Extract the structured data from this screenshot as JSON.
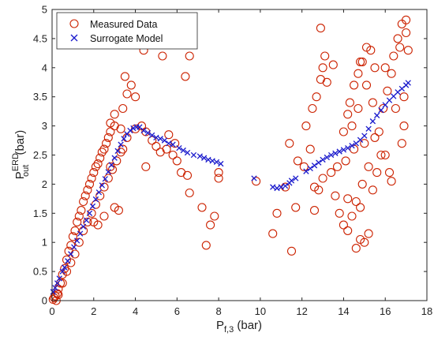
{
  "chart_data": {
    "type": "scatter",
    "title": "",
    "xlabel": {
      "main": "P",
      "sub": "f,3",
      "unit": " (bar)"
    },
    "ylabel": {
      "main": "P",
      "sup": "ERD",
      "sub": "out",
      "unit": " (bar)"
    },
    "xlim": [
      0,
      18
    ],
    "ylim": [
      0,
      5
    ],
    "xticks": [
      "0",
      "2",
      "4",
      "6",
      "8",
      "10",
      "12",
      "14",
      "16",
      "18"
    ],
    "yticks": [
      "0",
      "0.5",
      "1",
      "1.5",
      "2",
      "2.5",
      "3",
      "3.5",
      "4",
      "4.5",
      "5"
    ],
    "legend_position": "top-left",
    "colors": {
      "measured": "#cc2200",
      "measured_fill": "#ff0000",
      "model": "#1a1acc"
    },
    "series": [
      {
        "name": "Measured Data",
        "marker": "circle",
        "points": [
          [
            0.05,
            0.02
          ],
          [
            0.1,
            0.05
          ],
          [
            0.15,
            0.08
          ],
          [
            0.2,
            0.0
          ],
          [
            0.25,
            0.12
          ],
          [
            0.3,
            0.2
          ],
          [
            0.4,
            0.3
          ],
          [
            0.5,
            0.45
          ],
          [
            0.6,
            0.55
          ],
          [
            0.7,
            0.7
          ],
          [
            0.8,
            0.85
          ],
          [
            0.9,
            0.95
          ],
          [
            1.0,
            1.1
          ],
          [
            1.1,
            1.2
          ],
          [
            1.2,
            1.35
          ],
          [
            1.3,
            1.45
          ],
          [
            1.4,
            1.55
          ],
          [
            1.5,
            1.7
          ],
          [
            1.6,
            1.8
          ],
          [
            1.7,
            1.9
          ],
          [
            1.8,
            2.0
          ],
          [
            1.9,
            2.1
          ],
          [
            2.0,
            2.2
          ],
          [
            2.1,
            2.3
          ],
          [
            2.2,
            2.35
          ],
          [
            2.3,
            2.45
          ],
          [
            2.4,
            2.55
          ],
          [
            2.5,
            2.6
          ],
          [
            2.6,
            2.7
          ],
          [
            2.7,
            2.8
          ],
          [
            2.8,
            2.9
          ],
          [
            3.0,
            3.0
          ],
          [
            0.3,
            0.1
          ],
          [
            0.5,
            0.3
          ],
          [
            0.7,
            0.5
          ],
          [
            0.9,
            0.65
          ],
          [
            1.1,
            0.8
          ],
          [
            1.3,
            1.0
          ],
          [
            1.5,
            1.2
          ],
          [
            1.7,
            1.35
          ],
          [
            1.9,
            1.5
          ],
          [
            2.1,
            1.65
          ],
          [
            2.3,
            1.8
          ],
          [
            2.5,
            1.95
          ],
          [
            2.7,
            2.1
          ],
          [
            2.9,
            2.25
          ],
          [
            3.1,
            2.4
          ],
          [
            3.3,
            2.55
          ],
          [
            2.0,
            1.35
          ],
          [
            2.2,
            1.3
          ],
          [
            2.5,
            1.45
          ],
          [
            3.0,
            1.6
          ],
          [
            3.2,
            1.55
          ],
          [
            2.8,
            2.3
          ],
          [
            3.4,
            2.6
          ],
          [
            3.6,
            2.8
          ],
          [
            3.3,
            2.95
          ],
          [
            2.8,
            3.05
          ],
          [
            3.0,
            3.2
          ],
          [
            3.4,
            3.3
          ],
          [
            3.6,
            3.55
          ],
          [
            3.8,
            3.7
          ],
          [
            4.0,
            3.5
          ],
          [
            3.5,
            3.85
          ],
          [
            4.0,
            2.95
          ],
          [
            4.3,
            3.0
          ],
          [
            4.5,
            2.9
          ],
          [
            4.8,
            2.75
          ],
          [
            5.0,
            2.65
          ],
          [
            5.2,
            2.55
          ],
          [
            5.5,
            2.6
          ],
          [
            5.8,
            2.5
          ],
          [
            6.0,
            2.4
          ],
          [
            6.2,
            2.2
          ],
          [
            6.5,
            2.15
          ],
          [
            6.6,
            1.85
          ],
          [
            7.2,
            1.6
          ],
          [
            7.6,
            1.3
          ],
          [
            7.4,
            0.95
          ],
          [
            7.8,
            1.45
          ],
          [
            8.0,
            2.2
          ],
          [
            8.0,
            2.1
          ],
          [
            9.8,
            2.05
          ],
          [
            4.4,
            4.3
          ],
          [
            5.3,
            4.2
          ],
          [
            6.6,
            4.2
          ],
          [
            6.4,
            3.85
          ],
          [
            4.5,
            2.3
          ],
          [
            5.6,
            2.85
          ],
          [
            5.9,
            2.7
          ],
          [
            10.6,
            1.15
          ],
          [
            10.8,
            1.5
          ],
          [
            11.2,
            1.95
          ],
          [
            11.5,
            0.85
          ],
          [
            11.7,
            1.6
          ],
          [
            11.8,
            2.4
          ],
          [
            11.4,
            2.7
          ],
          [
            12.1,
            2.3
          ],
          [
            12.4,
            2.6
          ],
          [
            12.5,
            3.3
          ],
          [
            12.7,
            3.5
          ],
          [
            12.9,
            3.8
          ],
          [
            13.0,
            4.0
          ],
          [
            13.1,
            4.2
          ],
          [
            12.9,
            4.68
          ],
          [
            12.6,
            1.55
          ],
          [
            12.8,
            1.9
          ],
          [
            13.0,
            2.1
          ],
          [
            13.4,
            2.2
          ],
          [
            13.6,
            1.8
          ],
          [
            13.8,
            1.5
          ],
          [
            14.0,
            1.3
          ],
          [
            14.2,
            1.2
          ],
          [
            14.4,
            1.45
          ],
          [
            14.6,
            1.7
          ],
          [
            14.8,
            1.6
          ],
          [
            14.1,
            2.4
          ],
          [
            14.0,
            2.9
          ],
          [
            14.2,
            3.2
          ],
          [
            14.3,
            3.4
          ],
          [
            14.5,
            3.7
          ],
          [
            14.7,
            3.9
          ],
          [
            14.9,
            4.1
          ],
          [
            15.1,
            4.35
          ],
          [
            14.8,
            4.1
          ],
          [
            15.3,
            4.3
          ],
          [
            14.5,
            2.6
          ],
          [
            15.0,
            2.7
          ],
          [
            15.4,
            1.9
          ],
          [
            15.6,
            2.2
          ],
          [
            15.8,
            2.5
          ],
          [
            15.7,
            2.9
          ],
          [
            15.9,
            3.3
          ],
          [
            16.1,
            3.6
          ],
          [
            16.3,
            3.9
          ],
          [
            16.4,
            4.2
          ],
          [
            16.6,
            4.5
          ],
          [
            16.8,
            4.75
          ],
          [
            17.0,
            4.82
          ],
          [
            16.5,
            3.3
          ],
          [
            16.9,
            3.5
          ],
          [
            17.1,
            4.3
          ],
          [
            16.2,
            2.2
          ],
          [
            16.3,
            2.05
          ],
          [
            15.0,
            1.0
          ],
          [
            14.8,
            1.05
          ],
          [
            14.6,
            0.9
          ],
          [
            15.2,
            1.15
          ],
          [
            16.9,
            3.0
          ],
          [
            16.8,
            2.7
          ],
          [
            14.2,
            1.75
          ],
          [
            13.2,
            3.75
          ],
          [
            15.5,
            2.8
          ],
          [
            15.2,
            2.3
          ],
          [
            13.7,
            2.3
          ],
          [
            16.0,
            4.0
          ],
          [
            16.7,
            4.35
          ],
          [
            17.0,
            4.6
          ],
          [
            12.2,
            3.0
          ],
          [
            13.5,
            4.05
          ],
          [
            14.4,
            3.0
          ],
          [
            14.7,
            3.3
          ],
          [
            15.1,
            3.7
          ],
          [
            15.4,
            3.4
          ],
          [
            12.6,
            1.95
          ],
          [
            14.9,
            2.0
          ],
          [
            15.5,
            4.0
          ],
          [
            16.0,
            2.5
          ]
        ]
      },
      {
        "name": "Surrogate Model",
        "marker": "x",
        "points": [
          [
            0.05,
            0.15
          ],
          [
            0.15,
            0.22
          ],
          [
            0.25,
            0.3
          ],
          [
            0.35,
            0.38
          ],
          [
            0.5,
            0.5
          ],
          [
            0.6,
            0.57
          ],
          [
            0.75,
            0.68
          ],
          [
            0.9,
            0.8
          ],
          [
            1.05,
            0.92
          ],
          [
            1.2,
            1.03
          ],
          [
            1.35,
            1.15
          ],
          [
            1.5,
            1.27
          ],
          [
            1.65,
            1.38
          ],
          [
            1.8,
            1.5
          ],
          [
            1.95,
            1.62
          ],
          [
            2.1,
            1.74
          ],
          [
            2.25,
            1.86
          ],
          [
            2.4,
            1.98
          ],
          [
            2.55,
            2.09
          ],
          [
            2.7,
            2.21
          ],
          [
            2.85,
            2.33
          ],
          [
            3.0,
            2.45
          ],
          [
            3.15,
            2.57
          ],
          [
            3.3,
            2.68
          ],
          [
            3.45,
            2.78
          ],
          [
            3.6,
            2.86
          ],
          [
            3.75,
            2.92
          ],
          [
            3.9,
            2.96
          ],
          [
            4.05,
            2.98
          ],
          [
            4.2,
            2.98
          ],
          [
            4.4,
            2.92
          ],
          [
            4.6,
            2.88
          ],
          [
            4.8,
            2.84
          ],
          [
            5.0,
            2.8
          ],
          [
            5.2,
            2.78
          ],
          [
            5.4,
            2.75
          ],
          [
            5.6,
            2.7
          ],
          [
            5.8,
            2.68
          ],
          [
            6.1,
            2.62
          ],
          [
            6.3,
            2.58
          ],
          [
            6.5,
            2.54
          ],
          [
            6.8,
            2.5
          ],
          [
            7.1,
            2.48
          ],
          [
            7.3,
            2.45
          ],
          [
            7.5,
            2.42
          ],
          [
            7.7,
            2.4
          ],
          [
            7.9,
            2.38
          ],
          [
            8.1,
            2.35
          ],
          [
            9.7,
            2.1
          ],
          [
            10.6,
            1.95
          ],
          [
            10.8,
            1.93
          ],
          [
            11.0,
            1.95
          ],
          [
            11.2,
            1.97
          ],
          [
            11.4,
            2.02
          ],
          [
            11.5,
            2.06
          ],
          [
            11.7,
            2.1
          ],
          [
            12.2,
            2.22
          ],
          [
            12.4,
            2.27
          ],
          [
            12.6,
            2.32
          ],
          [
            12.8,
            2.37
          ],
          [
            13.0,
            2.42
          ],
          [
            13.2,
            2.46
          ],
          [
            13.4,
            2.5
          ],
          [
            13.6,
            2.53
          ],
          [
            13.8,
            2.56
          ],
          [
            14.0,
            2.59
          ],
          [
            14.2,
            2.62
          ],
          [
            14.4,
            2.66
          ],
          [
            14.6,
            2.7
          ],
          [
            14.8,
            2.76
          ],
          [
            15.0,
            2.83
          ],
          [
            15.2,
            2.95
          ],
          [
            15.4,
            3.08
          ],
          [
            15.6,
            3.18
          ],
          [
            15.8,
            3.27
          ],
          [
            16.0,
            3.36
          ],
          [
            16.2,
            3.44
          ],
          [
            16.4,
            3.51
          ],
          [
            16.6,
            3.58
          ],
          [
            16.8,
            3.64
          ],
          [
            17.0,
            3.7
          ],
          [
            17.1,
            3.74
          ]
        ]
      }
    ]
  }
}
